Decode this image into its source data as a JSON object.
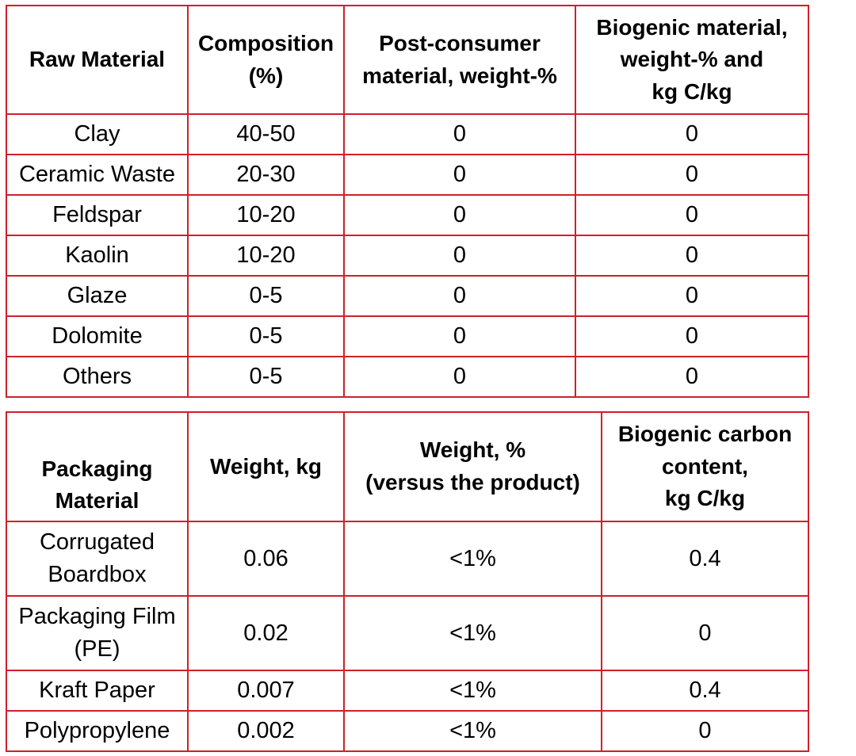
{
  "raw_materials": {
    "headers": [
      "Raw Material",
      "Composition (%)",
      "Post-consumer material, weight-%",
      "Biogenic material, weight-% and kg C/kg"
    ],
    "header_lines": [
      [
        "Raw Material"
      ],
      [
        "Composition",
        "(%)"
      ],
      [
        "Post-consumer",
        "material, weight-%"
      ],
      [
        "Biogenic material,",
        "weight-% and",
        "kg C/kg"
      ]
    ],
    "rows": [
      [
        "Clay",
        "40-50",
        "0",
        "0"
      ],
      [
        "Ceramic Waste",
        "20-30",
        "0",
        "0"
      ],
      [
        "Feldspar",
        "10-20",
        "0",
        "0"
      ],
      [
        "Kaolin",
        "10-20",
        "0",
        "0"
      ],
      [
        "Glaze",
        "0-5",
        "0",
        "0"
      ],
      [
        "Dolomite",
        "0-5",
        "0",
        "0"
      ],
      [
        "Others",
        "0-5",
        "0",
        "0"
      ]
    ]
  },
  "packaging": {
    "headers": [
      "Packaging Material",
      "Weight, kg",
      "Weight, % (versus the product)",
      "Biogenic carbon content, kg C/kg"
    ],
    "header_lines": [
      [
        "Packaging",
        "Material"
      ],
      [
        "Weight, kg"
      ],
      [
        "Weight, %",
        "(versus the product)"
      ],
      [
        "Biogenic carbon",
        "content,",
        "kg C/kg"
      ]
    ],
    "rows": [
      [
        [
          "Corrugated",
          "Boardbox"
        ],
        "0.06",
        "<1%",
        "0.4"
      ],
      [
        [
          "Packaging Film",
          "(PE)"
        ],
        "0.02",
        "<1%",
        "0"
      ],
      [
        [
          "Kraft Paper"
        ],
        "0.007",
        "<1%",
        "0.4"
      ],
      [
        [
          "Polypropylene"
        ],
        "0.002",
        "<1%",
        "0"
      ]
    ]
  },
  "colors": {
    "border": "#d0202a",
    "text": "#000000",
    "background": "#ffffff"
  }
}
